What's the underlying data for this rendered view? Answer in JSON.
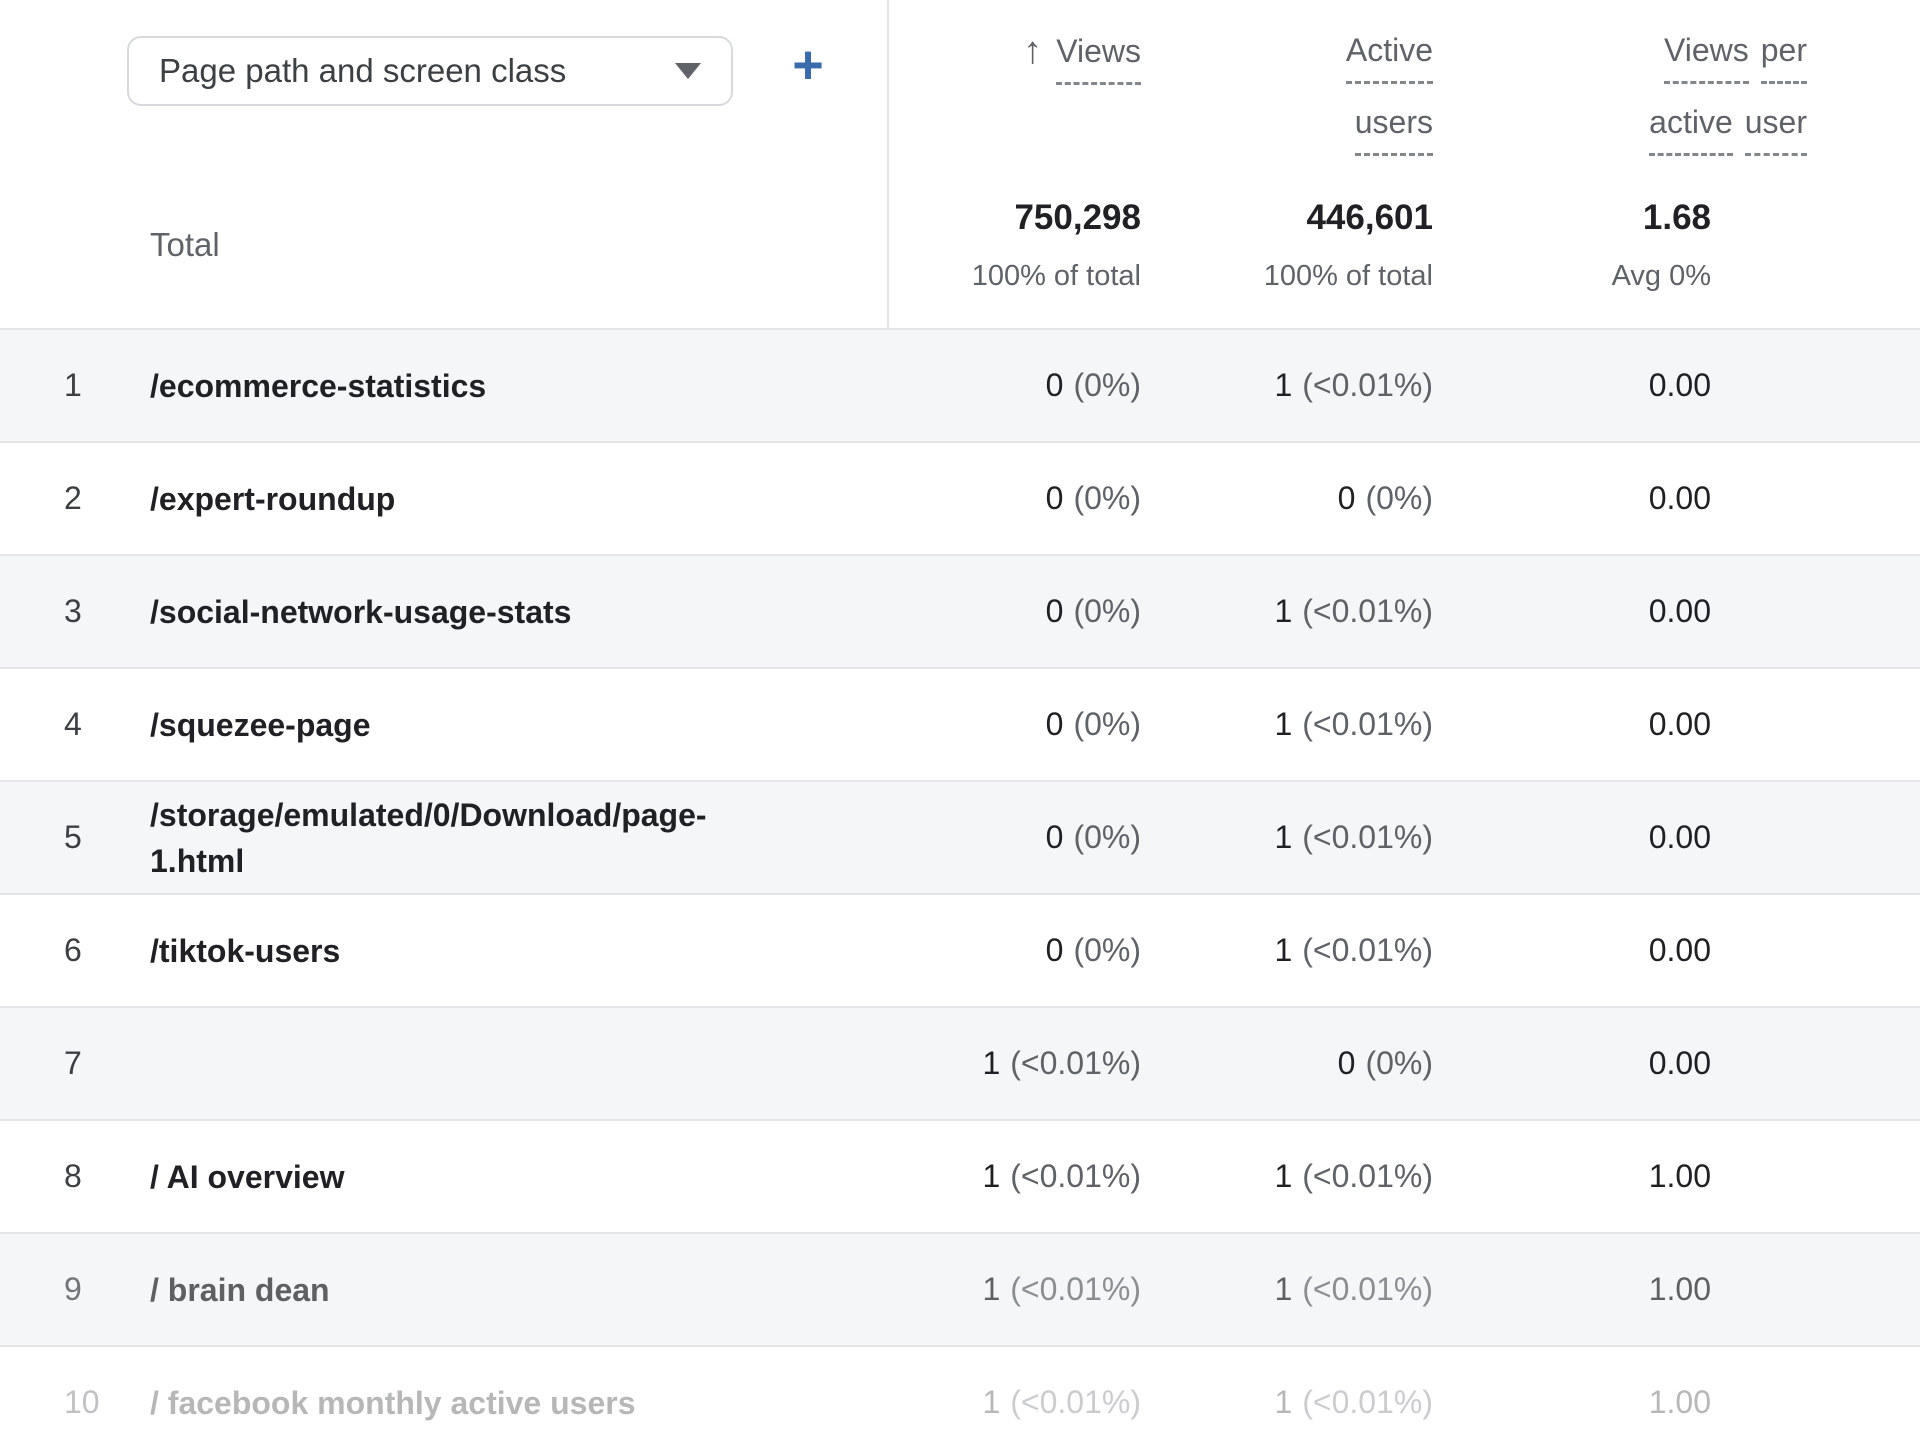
{
  "toolbar": {
    "dimension_label": "Page path and screen class",
    "add_label": "+"
  },
  "colors": {
    "accent_blue": "#3a6bad",
    "text_dark": "#202124",
    "text_gray": "#5f6368",
    "row_band": "#f5f6f7",
    "grid_line": "#e3e5e8"
  },
  "table": {
    "columns": [
      {
        "label": "Views",
        "lines": [
          "Views"
        ],
        "sort": "ascending"
      },
      {
        "label": "Active users",
        "lines": [
          "Active",
          "users"
        ]
      },
      {
        "label": "Views per active user",
        "lines": [
          "Views per",
          "active user"
        ]
      }
    ],
    "total": {
      "label": "Total",
      "views": "750,298",
      "views_sub": "100% of total",
      "active_users": "446,601",
      "active_users_sub": "100% of total",
      "views_per_active_user": "1.68",
      "views_per_active_user_sub": "Avg 0%"
    },
    "rows": [
      {
        "index": "1",
        "path": "/ecommerce-statistics",
        "views": "0",
        "views_pct": "(0%)",
        "active_users": "1",
        "active_users_pct": "(<0.01%)",
        "views_per_active_user": "0.00"
      },
      {
        "index": "2",
        "path": "/expert-roundup",
        "views": "0",
        "views_pct": "(0%)",
        "active_users": "0",
        "active_users_pct": "(0%)",
        "views_per_active_user": "0.00"
      },
      {
        "index": "3",
        "path": "/social-network-usage-stats",
        "views": "0",
        "views_pct": "(0%)",
        "active_users": "1",
        "active_users_pct": "(<0.01%)",
        "views_per_active_user": "0.00"
      },
      {
        "index": "4",
        "path": "/squezee-page",
        "views": "0",
        "views_pct": "(0%)",
        "active_users": "1",
        "active_users_pct": "(<0.01%)",
        "views_per_active_user": "0.00"
      },
      {
        "index": "5",
        "path": "/storage/emulated/0/Download/page-1.html",
        "views": "0",
        "views_pct": "(0%)",
        "active_users": "1",
        "active_users_pct": "(<0.01%)",
        "views_per_active_user": "0.00"
      },
      {
        "index": "6",
        "path": "/tiktok-users",
        "views": "0",
        "views_pct": "(0%)",
        "active_users": "1",
        "active_users_pct": "(<0.01%)",
        "views_per_active_user": "0.00"
      },
      {
        "index": "7",
        "path": "",
        "views": "1",
        "views_pct": "(<0.01%)",
        "active_users": "0",
        "active_users_pct": "(0%)",
        "views_per_active_user": "0.00"
      },
      {
        "index": "8",
        "path": "/ AI overview",
        "views": "1",
        "views_pct": "(<0.01%)",
        "active_users": "1",
        "active_users_pct": "(<0.01%)",
        "views_per_active_user": "1.00"
      },
      {
        "index": "9",
        "path": "/ brain dean",
        "views": "1",
        "views_pct": "(<0.01%)",
        "active_users": "1",
        "active_users_pct": "(<0.01%)",
        "views_per_active_user": "1.00"
      },
      {
        "index": "10",
        "path": "/ facebook monthly active users",
        "views": "1",
        "views_pct": "(<0.01%)",
        "active_users": "1",
        "active_users_pct": "(<0.01%)",
        "views_per_active_user": "1.00"
      }
    ]
  }
}
